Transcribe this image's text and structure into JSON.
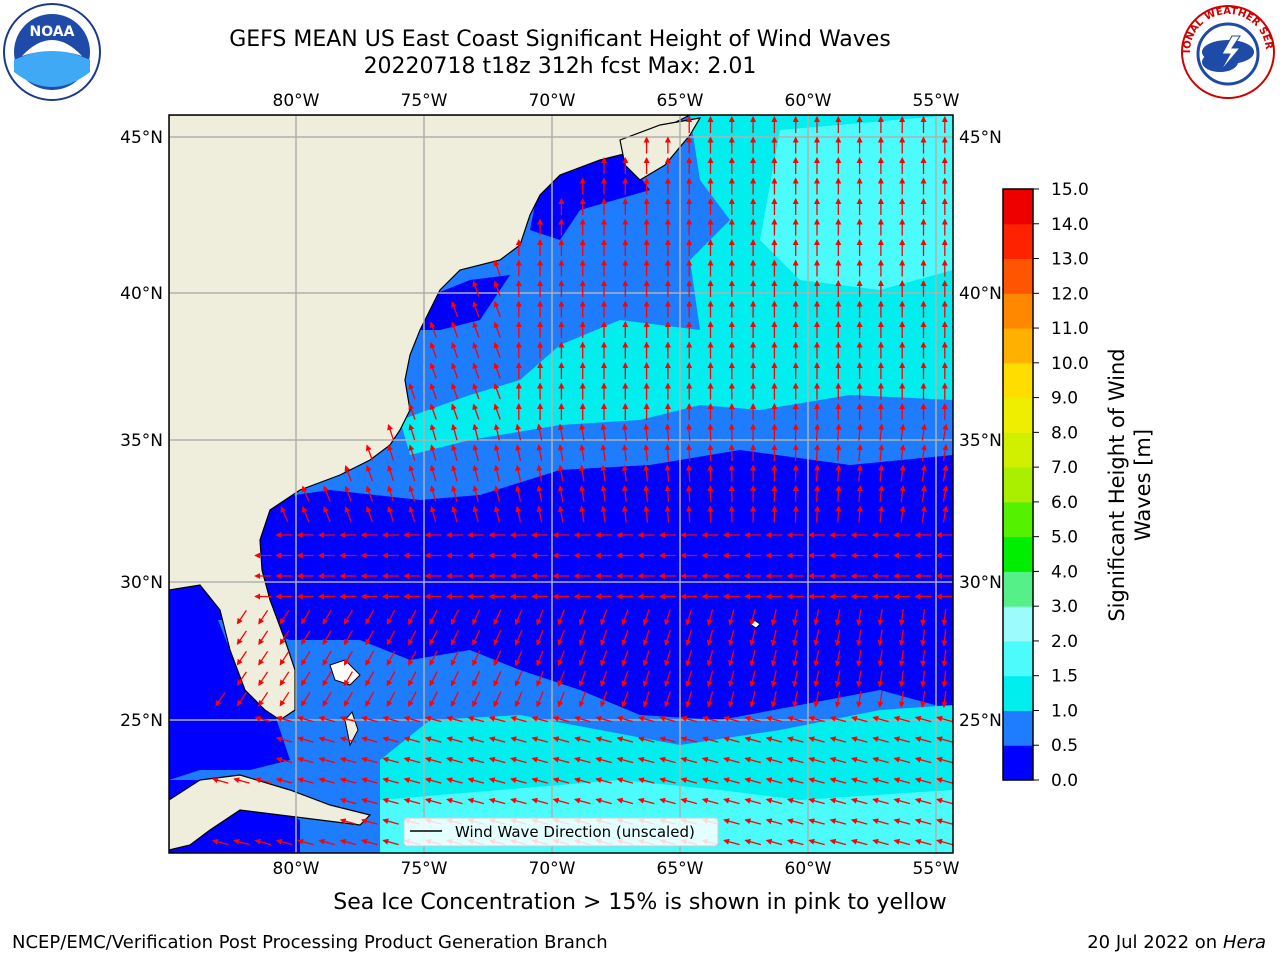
{
  "title": {
    "line1": "GEFS MEAN US East Coast Significant Height of Wind Waves",
    "line2": "20220718 t18z 312h fcst    Max: 2.01"
  },
  "logos": {
    "left": "NOAA",
    "right": "NATIONAL WEATHER SERVICE"
  },
  "map": {
    "lon_ticks": [
      "80°W",
      "75°W",
      "70°W",
      "65°W",
      "60°W",
      "55°W"
    ],
    "lat_ticks": [
      "45°N",
      "40°N",
      "35°N",
      "30°N",
      "25°N"
    ],
    "legend_label": "Wind Wave Direction (unscaled)",
    "colors": {
      "land": "#efeedc",
      "grid": "#b0b0b0",
      "arrows": "#ff0000"
    }
  },
  "colorbar": {
    "label": "Significant Height of Wind Waves [m]",
    "ticks": [
      "0.0",
      "0.5",
      "1.0",
      "1.5",
      "2.0",
      "3.0",
      "4.0",
      "5.0",
      "6.0",
      "7.0",
      "8.0",
      "9.0",
      "10.0",
      "11.0",
      "12.0",
      "13.0",
      "14.0",
      "15.0"
    ],
    "colors": [
      "#0000ff",
      "#1e7cff",
      "#00eeee",
      "#4cfcfc",
      "#9cfcfc",
      "#55f088",
      "#00ee00",
      "#55f200",
      "#aaee00",
      "#d0f000",
      "#eeee00",
      "#ffdd00",
      "#ffb000",
      "#ff8800",
      "#ff5500",
      "#ff2200",
      "#ee0000"
    ]
  },
  "ice_note": "Sea Ice Concentration > 15% is shown in pink to yellow",
  "footer": {
    "left": "NCEP/EMC/Verification Post Processing Product Generation Branch",
    "right_prefix": "20 Jul 2022 on ",
    "right_host": "Hera"
  }
}
